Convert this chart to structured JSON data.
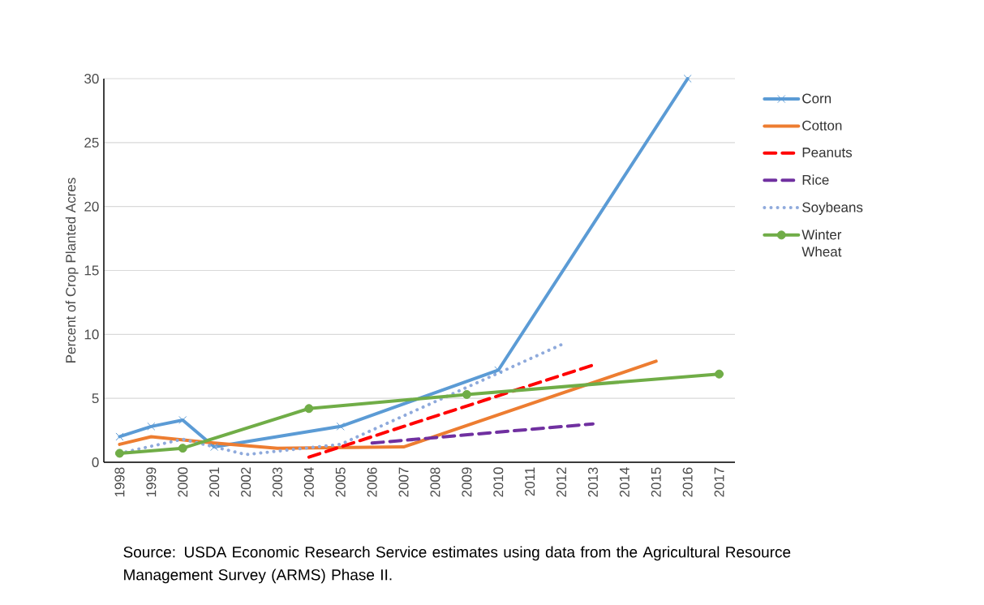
{
  "chart_data": {
    "type": "line",
    "ylabel": "Percent of Crop Planted Acres",
    "xlim": [
      1997.5,
      2017.5
    ],
    "xticks": [
      1998,
      1999,
      2000,
      2001,
      2002,
      2003,
      2004,
      2005,
      2006,
      2007,
      2008,
      2009,
      2010,
      2011,
      2012,
      2013,
      2014,
      2015,
      2016,
      2017
    ],
    "ylim": [
      0,
      30
    ],
    "yticks": [
      0,
      5,
      10,
      15,
      20,
      25,
      30
    ],
    "grid": "y",
    "legend": "right",
    "series": [
      {
        "name": "Corn",
        "color": "#5b9bd5",
        "marker": "cross",
        "line_style": "solid",
        "x": [
          1998,
          1999,
          2000,
          2001,
          2005,
          2010,
          2016
        ],
        "values": [
          2.0,
          2.8,
          3.3,
          1.2,
          2.8,
          7.2,
          30
        ]
      },
      {
        "name": "Cotton",
        "color": "#ed7d31",
        "marker": "none",
        "line_style": "solid",
        "x": [
          1998,
          1999,
          2001,
          2003,
          2007,
          2015
        ],
        "values": [
          1.4,
          2.0,
          1.5,
          1.1,
          1.2,
          7.9
        ]
      },
      {
        "name": "Peanuts",
        "color": "#ff0000",
        "marker": "none",
        "line_style": "dashed",
        "x": [
          2004,
          2013
        ],
        "values": [
          0.4,
          7.6
        ]
      },
      {
        "name": "Rice",
        "color": "#7030a0",
        "marker": "none",
        "line_style": "dashed",
        "x": [
          2006,
          2013
        ],
        "values": [
          1.5,
          3.0
        ]
      },
      {
        "name": "Soybeans",
        "color": "#8faadc",
        "marker": "none",
        "line_style": "dotted",
        "x": [
          1998,
          2000,
          2002,
          2005,
          2012
        ],
        "values": [
          0.7,
          1.8,
          0.6,
          1.4,
          9.2
        ]
      },
      {
        "name": "Winter Wheat",
        "color": "#70ad47",
        "marker": "circle",
        "line_style": "solid",
        "x": [
          1998,
          2000,
          2004,
          2009,
          2017
        ],
        "values": [
          0.7,
          1.1,
          4.2,
          5.3,
          6.9
        ]
      }
    ],
    "annotations": [
      "Source: USDA Economic Research Service estimates using data from the Agricultural Resource Management Survey (ARMS) Phase II."
    ]
  }
}
